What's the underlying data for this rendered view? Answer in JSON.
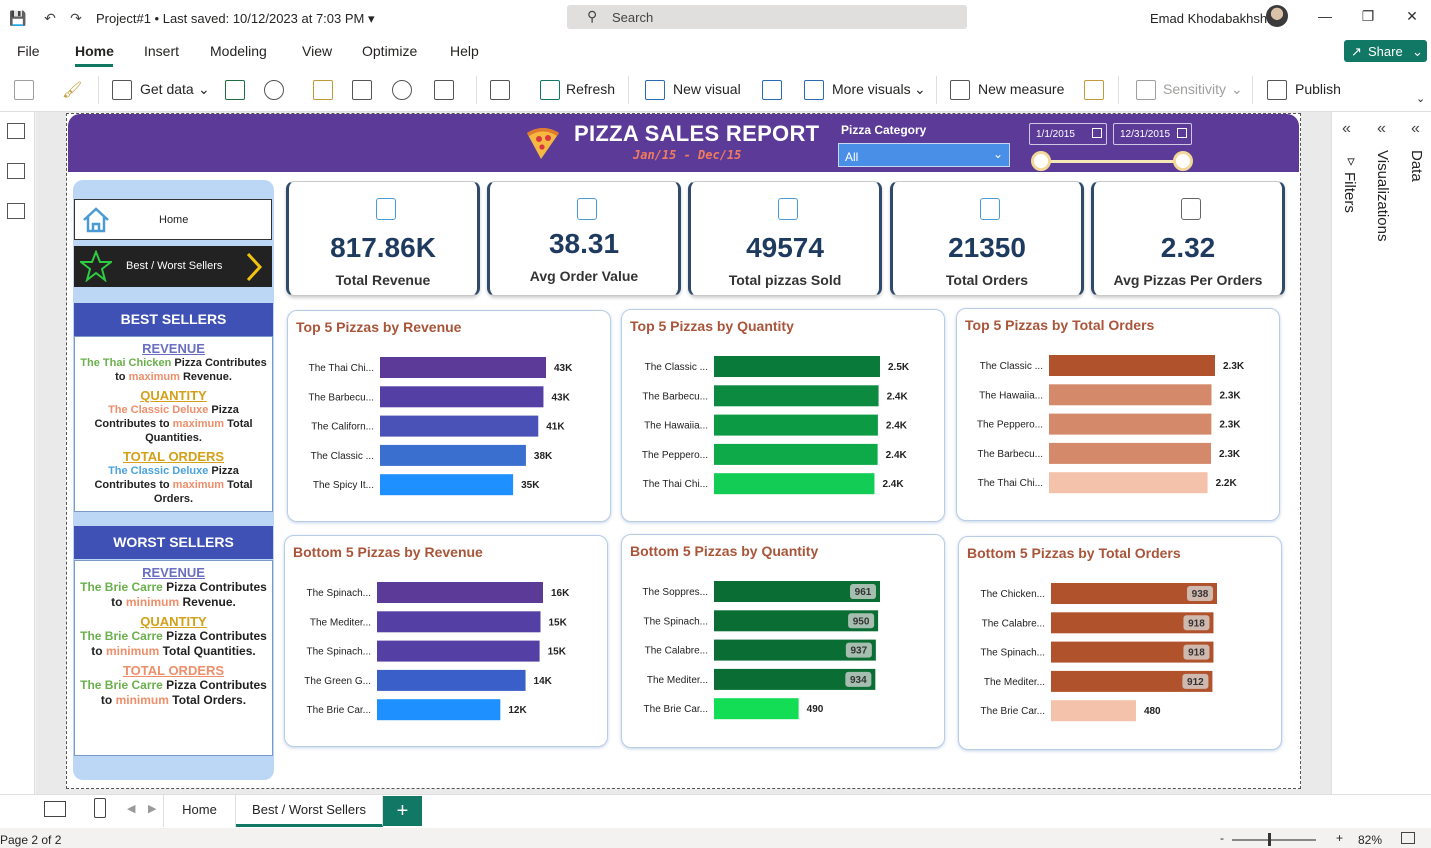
{
  "titlebar": {
    "project": "Project#1",
    "saved": "Last saved: 10/12/2023 at 7:03 PM",
    "search_placeholder": "Search",
    "user": "Emad Khodabakhshi"
  },
  "ribbon": {
    "tabs": [
      "File",
      "Home",
      "Insert",
      "Modeling",
      "View",
      "Optimize",
      "Help"
    ],
    "active_tab": "Home",
    "share": "Share",
    "tools": {
      "get_data": "Get data",
      "refresh": "Refresh",
      "new_visual": "New visual",
      "more_visuals": "More visuals",
      "new_measure": "New measure",
      "sensitivity": "Sensitivity",
      "publish": "Publish"
    }
  },
  "panes": {
    "filters": "Filters",
    "visualizations": "Visualizations",
    "data": "Data"
  },
  "report": {
    "title": "PIZZA SALES REPORT",
    "subtitle": "Jan/15 - Dec/15",
    "category_label": "Pizza Category",
    "category_value": "All",
    "date_start": "1/1/2015",
    "date_end": "12/31/2015",
    "date_range_fraction": [
      0.0,
      1.0
    ]
  },
  "nav": {
    "home": "Home",
    "best_worst": "Best / Worst Sellers"
  },
  "best_sellers": {
    "title": "BEST SELLERS",
    "revenue_title": "REVENUE",
    "revenue_pizza": "The Thai Chicken",
    "revenue_mid": " Pizza Contributes to ",
    "revenue_word": "maximum",
    "revenue_end": " Revenue.",
    "quantity_title": "QUANTITY",
    "quantity_pizza": "The Classic Deluxe",
    "quantity_mid": " Pizza Contributes to ",
    "quantity_word": "maximum",
    "quantity_end": " Total Quantities.",
    "orders_title": "TOTAL ORDERS",
    "orders_pizza": "The Classic Deluxe",
    "orders_mid": " Pizza Contributes to ",
    "orders_word": "maximum",
    "orders_end": " Total Orders."
  },
  "worst_sellers": {
    "title": "WORST SELLERS",
    "revenue_title": "REVENUE",
    "revenue_pizza": "The Brie Carre",
    "revenue_mid": " Pizza Contributes to ",
    "revenue_word": "minimum",
    "revenue_end": " Revenue.",
    "quantity_title": "QUANTITY",
    "quantity_pizza": "The Brie Carre",
    "quantity_mid": " Pizza Contributes to ",
    "quantity_word": "minimum",
    "quantity_end": " Total Quantities.",
    "orders_title": "TOTAL ORDERS",
    "orders_pizza": "The Brie Carre",
    "orders_mid": " Pizza Contributes to ",
    "orders_word": "minimum",
    "orders_end": " Total Orders."
  },
  "kpis": [
    {
      "value": "817.86K",
      "label": "Total Revenue"
    },
    {
      "value": "38.31",
      "label": "Avg Order Value"
    },
    {
      "value": "49574",
      "label": "Total pizzas Sold"
    },
    {
      "value": "21350",
      "label": "Total Orders"
    },
    {
      "value": "2.32",
      "label": "Avg Pizzas Per Orders"
    }
  ],
  "chart_data": [
    {
      "type": "bar",
      "orientation": "horizontal",
      "title": "Top 5 Pizzas by Revenue",
      "categories": [
        "The Thai Chi...",
        "The Barbecu...",
        "The Californ...",
        "The Classic ...",
        "The Spicy It..."
      ],
      "values": [
        43434,
        42768,
        41410,
        38181,
        34831
      ],
      "labels": [
        "43K",
        "43K",
        "41K",
        "38K",
        "35K"
      ],
      "colors": [
        "#5b3b97",
        "#5440a5",
        "#4a52b8",
        "#3a6fd0",
        "#1e90ff"
      ],
      "label_style": "outside"
    },
    {
      "type": "bar",
      "orientation": "horizontal",
      "title": "Top 5 Pizzas by Quantity",
      "categories": [
        "The Classic ...",
        "The Barbecu...",
        "The Hawaiia...",
        "The Peppero...",
        "The Thai Chi..."
      ],
      "values": [
        2453,
        2432,
        2422,
        2418,
        2371
      ],
      "labels": [
        "2.5K",
        "2.4K",
        "2.4K",
        "2.4K",
        "2.4K"
      ],
      "colors": [
        "#0a7a3a",
        "#0b8a40",
        "#0c9a45",
        "#0eaa4a",
        "#12cc55"
      ],
      "label_style": "outside"
    },
    {
      "type": "bar",
      "orientation": "horizontal",
      "title": "Top 5 Pizzas by Total Orders",
      "categories": [
        "The Classic ...",
        "The Hawaiia...",
        "The Peppero...",
        "The Barbecu...",
        "The Thai Chi..."
      ],
      "values": [
        2329,
        2280,
        2278,
        2273,
        2225
      ],
      "labels": [
        "2.3K",
        "2.3K",
        "2.3K",
        "2.3K",
        "2.2K"
      ],
      "colors": [
        "#b0532c",
        "#d4896a",
        "#d4896a",
        "#d4896a",
        "#f4c2aa"
      ],
      "label_style": "outside"
    },
    {
      "type": "bar",
      "orientation": "horizontal",
      "title": "Bottom 5 Pizzas by Revenue",
      "categories": [
        "The Spinach...",
        "The Mediter...",
        "The Spinach...",
        "The Green G...",
        "The Brie Car..."
      ],
      "values": [
        15596,
        15360,
        15277,
        13956,
        11588
      ],
      "labels": [
        "16K",
        "15K",
        "15K",
        "14K",
        "12K"
      ],
      "colors": [
        "#5b3b97",
        "#5440a5",
        "#5440a5",
        "#3a5fc8",
        "#1e90ff"
      ],
      "label_style": "outside"
    },
    {
      "type": "bar",
      "orientation": "horizontal",
      "title": "Bottom 5 Pizzas by Quantity",
      "categories": [
        "The Soppres...",
        "The Spinach...",
        "The Calabre...",
        "The Mediter...",
        "The Brie Car..."
      ],
      "values": [
        961,
        950,
        937,
        934,
        490
      ],
      "labels": [
        "961",
        "950",
        "937",
        "934",
        "490"
      ],
      "colors": [
        "#0a6e34",
        "#0a6e34",
        "#0a6e34",
        "#0a6e34",
        "#12dd55"
      ],
      "label_style": "badge"
    },
    {
      "type": "bar",
      "orientation": "horizontal",
      "title": "Bottom 5 Pizzas by Total Orders",
      "categories": [
        "The Chicken...",
        "The Calabre...",
        "The Spinach...",
        "The Mediter...",
        "The Brie Car..."
      ],
      "values": [
        938,
        918,
        918,
        912,
        480
      ],
      "labels": [
        "938",
        "918",
        "918",
        "912",
        "480"
      ],
      "colors": [
        "#b0532c",
        "#b0532c",
        "#b0532c",
        "#b0532c",
        "#f4c2aa"
      ],
      "label_style": "badge"
    }
  ],
  "pages": {
    "home": "Home",
    "best_worst": "Best / Worst Sellers",
    "add": "+"
  },
  "status": {
    "page": "Page 2 of 2",
    "zoom": "82%"
  }
}
